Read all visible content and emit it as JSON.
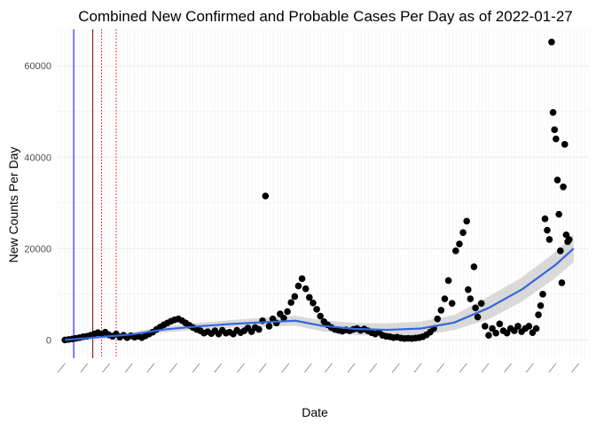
{
  "chart_data": {
    "type": "scatter",
    "title": "Combined New Confirmed and Probable Cases Per Day as of 2022-01-27",
    "xlabel": "Date",
    "ylabel": "New Counts Per Day",
    "ylim": [
      -4000,
      68000
    ],
    "y_ticks": [
      0,
      20000,
      40000,
      60000
    ],
    "grid": true,
    "legend": "none",
    "x_tick_labels_note": "dense overlapping rotated date labels, illegible in image",
    "vertical_lines": [
      {
        "date": "2020-03-13",
        "color": "#0000ff",
        "style": "solid"
      },
      {
        "date": "2020-04-08",
        "color": "#8b0000",
        "style": "solid"
      },
      {
        "date": "2020-04-20",
        "color": "#ff0000",
        "style": "dotted"
      },
      {
        "date": "2020-05-10",
        "color": "#ff0000",
        "style": "dotted"
      }
    ],
    "points": [
      [
        "2020-03-01",
        0
      ],
      [
        "2020-03-06",
        100
      ],
      [
        "2020-03-11",
        200
      ],
      [
        "2020-03-16",
        350
      ],
      [
        "2020-03-21",
        500
      ],
      [
        "2020-03-26",
        700
      ],
      [
        "2020-03-31",
        800
      ],
      [
        "2020-04-05",
        1000
      ],
      [
        "2020-04-10",
        1300
      ],
      [
        "2020-04-15",
        1600
      ],
      [
        "2020-04-20",
        1200
      ],
      [
        "2020-04-25",
        1700
      ],
      [
        "2020-04-30",
        1100
      ],
      [
        "2020-05-05",
        800
      ],
      [
        "2020-05-10",
        1300
      ],
      [
        "2020-05-15",
        600
      ],
      [
        "2020-05-20",
        1000
      ],
      [
        "2020-05-25",
        500
      ],
      [
        "2020-05-30",
        900
      ],
      [
        "2020-06-04",
        600
      ],
      [
        "2020-06-09",
        800
      ],
      [
        "2020-06-14",
        500
      ],
      [
        "2020-06-19",
        900
      ],
      [
        "2020-06-24",
        1300
      ],
      [
        "2020-06-29",
        1700
      ],
      [
        "2020-07-04",
        2300
      ],
      [
        "2020-07-09",
        2800
      ],
      [
        "2020-07-14",
        3300
      ],
      [
        "2020-07-19",
        3700
      ],
      [
        "2020-07-24",
        4100
      ],
      [
        "2020-07-29",
        4400
      ],
      [
        "2020-08-03",
        4600
      ],
      [
        "2020-08-08",
        4200
      ],
      [
        "2020-08-13",
        3700
      ],
      [
        "2020-08-18",
        3200
      ],
      [
        "2020-08-23",
        2700
      ],
      [
        "2020-08-28",
        2300
      ],
      [
        "2020-09-02",
        2000
      ],
      [
        "2020-09-07",
        1500
      ],
      [
        "2020-09-12",
        1800
      ],
      [
        "2020-09-17",
        1400
      ],
      [
        "2020-09-22",
        2000
      ],
      [
        "2020-09-27",
        1300
      ],
      [
        "2020-10-02",
        2100
      ],
      [
        "2020-10-07",
        1500
      ],
      [
        "2020-10-12",
        1700
      ],
      [
        "2020-10-17",
        1300
      ],
      [
        "2020-10-22",
        2100
      ],
      [
        "2020-10-27",
        1600
      ],
      [
        "2020-11-01",
        2000
      ],
      [
        "2020-11-06",
        2600
      ],
      [
        "2020-11-11",
        1800
      ],
      [
        "2020-11-16",
        2700
      ],
      [
        "2020-11-21",
        2300
      ],
      [
        "2020-11-26",
        4200
      ],
      [
        "2020-11-30",
        31500
      ],
      [
        "2020-12-05",
        3000
      ],
      [
        "2020-12-10",
        4600
      ],
      [
        "2020-12-15",
        3700
      ],
      [
        "2020-12-20",
        5700
      ],
      [
        "2020-12-25",
        4800
      ],
      [
        "2020-12-30",
        6200
      ],
      [
        "2021-01-04",
        8200
      ],
      [
        "2021-01-09",
        9500
      ],
      [
        "2021-01-14",
        11800
      ],
      [
        "2021-01-19",
        13400
      ],
      [
        "2021-01-24",
        11200
      ],
      [
        "2021-01-29",
        9300
      ],
      [
        "2021-02-03",
        8100
      ],
      [
        "2021-02-08",
        6700
      ],
      [
        "2021-02-13",
        5200
      ],
      [
        "2021-02-18",
        4000
      ],
      [
        "2021-02-23",
        3300
      ],
      [
        "2021-02-28",
        2700
      ],
      [
        "2021-03-05",
        2300
      ],
      [
        "2021-03-10",
        2100
      ],
      [
        "2021-03-15",
        1900
      ],
      [
        "2021-03-20",
        2200
      ],
      [
        "2021-03-25",
        2000
      ],
      [
        "2021-03-30",
        2300
      ],
      [
        "2021-04-04",
        2500
      ],
      [
        "2021-04-09",
        2100
      ],
      [
        "2021-04-14",
        2400
      ],
      [
        "2021-04-19",
        2000
      ],
      [
        "2021-04-24",
        1600
      ],
      [
        "2021-04-29",
        1300
      ],
      [
        "2021-05-04",
        1700
      ],
      [
        "2021-05-09",
        1000
      ],
      [
        "2021-05-14",
        800
      ],
      [
        "2021-05-19",
        700
      ],
      [
        "2021-05-24",
        500
      ],
      [
        "2021-05-29",
        600
      ],
      [
        "2021-06-03",
        400
      ],
      [
        "2021-06-08",
        300
      ],
      [
        "2021-06-13",
        350
      ],
      [
        "2021-06-18",
        300
      ],
      [
        "2021-06-23",
        400
      ],
      [
        "2021-06-28",
        500
      ],
      [
        "2021-07-03",
        700
      ],
      [
        "2021-07-08",
        1100
      ],
      [
        "2021-07-13",
        1700
      ],
      [
        "2021-07-18",
        2500
      ],
      [
        "2021-07-23",
        4600
      ],
      [
        "2021-07-28",
        6500
      ],
      [
        "2021-08-02",
        9000
      ],
      [
        "2021-08-07",
        13000
      ],
      [
        "2021-08-12",
        8000
      ],
      [
        "2021-08-17",
        19500
      ],
      [
        "2021-08-22",
        21000
      ],
      [
        "2021-08-27",
        23500
      ],
      [
        "2021-09-01",
        26000
      ],
      [
        "2021-09-03",
        11000
      ],
      [
        "2021-09-06",
        9000
      ],
      [
        "2021-09-11",
        16000
      ],
      [
        "2021-09-13",
        7000
      ],
      [
        "2021-09-16",
        5000
      ],
      [
        "2021-09-21",
        8000
      ],
      [
        "2021-09-26",
        3000
      ],
      [
        "2021-10-01",
        1000
      ],
      [
        "2021-10-06",
        2500
      ],
      [
        "2021-10-11",
        1500
      ],
      [
        "2021-10-16",
        3500
      ],
      [
        "2021-10-21",
        2000
      ],
      [
        "2021-10-26",
        1500
      ],
      [
        "2021-10-31",
        2500
      ],
      [
        "2021-11-05",
        2000
      ],
      [
        "2021-11-10",
        3000
      ],
      [
        "2021-11-15",
        1800
      ],
      [
        "2021-11-20",
        2500
      ],
      [
        "2021-11-25",
        3000
      ],
      [
        "2021-11-30",
        1600
      ],
      [
        "2021-12-05",
        2500
      ],
      [
        "2021-12-08",
        5500
      ],
      [
        "2021-12-11",
        7500
      ],
      [
        "2021-12-14",
        10000
      ],
      [
        "2021-12-17",
        26500
      ],
      [
        "2021-12-20",
        24000
      ],
      [
        "2021-12-23",
        22000
      ],
      [
        "2021-12-26",
        65200
      ],
      [
        "2021-12-28",
        49800
      ],
      [
        "2021-12-30",
        46000
      ],
      [
        "2022-01-01",
        44000
      ],
      [
        "2022-01-03",
        35000
      ],
      [
        "2022-01-05",
        27500
      ],
      [
        "2022-01-07",
        19500
      ],
      [
        "2022-01-09",
        12500
      ],
      [
        "2022-01-11",
        33500
      ],
      [
        "2022-01-13",
        42800
      ],
      [
        "2022-01-15",
        23000
      ],
      [
        "2022-01-17",
        21500
      ],
      [
        "2022-01-19",
        22000
      ]
    ],
    "trend": [
      [
        "2020-03-01",
        0
      ],
      [
        "2020-04-15",
        600
      ],
      [
        "2020-06-01",
        1200
      ],
      [
        "2020-07-15",
        2300
      ],
      [
        "2020-09-01",
        3000
      ],
      [
        "2020-10-15",
        3500
      ],
      [
        "2020-12-01",
        3900
      ],
      [
        "2021-01-10",
        4200
      ],
      [
        "2021-02-15",
        3100
      ],
      [
        "2021-04-01",
        2400
      ],
      [
        "2021-05-15",
        2200
      ],
      [
        "2021-07-01",
        2500
      ],
      [
        "2021-08-15",
        3800
      ],
      [
        "2021-10-01",
        7000
      ],
      [
        "2021-11-15",
        11000
      ],
      [
        "2022-01-01",
        16500
      ],
      [
        "2022-01-25",
        20000
      ]
    ],
    "x_range": [
      "2020-02-20",
      "2022-02-15"
    ],
    "x_tick_dates": [
      "2020-03-01",
      "2020-04-01",
      "2020-05-01",
      "2020-06-01",
      "2020-07-01",
      "2020-08-01",
      "2020-09-01",
      "2020-10-01",
      "2020-11-01",
      "2020-12-01",
      "2021-01-01",
      "2021-02-01",
      "2021-03-01",
      "2021-04-01",
      "2021-05-01",
      "2021-06-01",
      "2021-07-01",
      "2021-08-01",
      "2021-09-01",
      "2021-10-01",
      "2021-11-01",
      "2021-12-01",
      "2022-01-01",
      "2022-02-01"
    ],
    "colors": {
      "points": "#000000",
      "trend": "#3366dd",
      "band": "#bbbbbb",
      "grid": "#ebebeb",
      "axis_text": "#4d4d4d"
    }
  }
}
